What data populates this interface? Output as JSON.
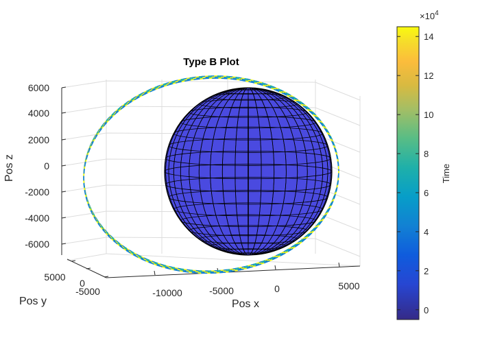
{
  "chart_data": {
    "type": "3d-trajectory",
    "title": "Type B Plot",
    "xlabel": "Pos x",
    "ylabel": "Pos y",
    "zlabel": "Pos z",
    "x_ticks": [
      "-10000",
      "-5000",
      "0",
      "5000"
    ],
    "y_ticks": [
      "-5000",
      "0",
      "5000"
    ],
    "z_ticks": [
      "6000",
      "4000",
      "2000",
      "0",
      "-2000",
      "-4000",
      "-6000"
    ],
    "grid": true,
    "sphere": {
      "color": "#4a4ae0",
      "edge_color": "#000000",
      "radius": 6371
    },
    "trajectory": {
      "colormap": "parula",
      "shape": "closed orbit"
    },
    "colorbar": {
      "label": "Time",
      "exponent": "×10^4",
      "exponent_base": "×10",
      "exponent_power": "4",
      "ticks": [
        "14",
        "12",
        "10",
        "8",
        "6",
        "4",
        "2",
        "0"
      ],
      "range": [
        -0.5,
        14.5
      ]
    }
  }
}
